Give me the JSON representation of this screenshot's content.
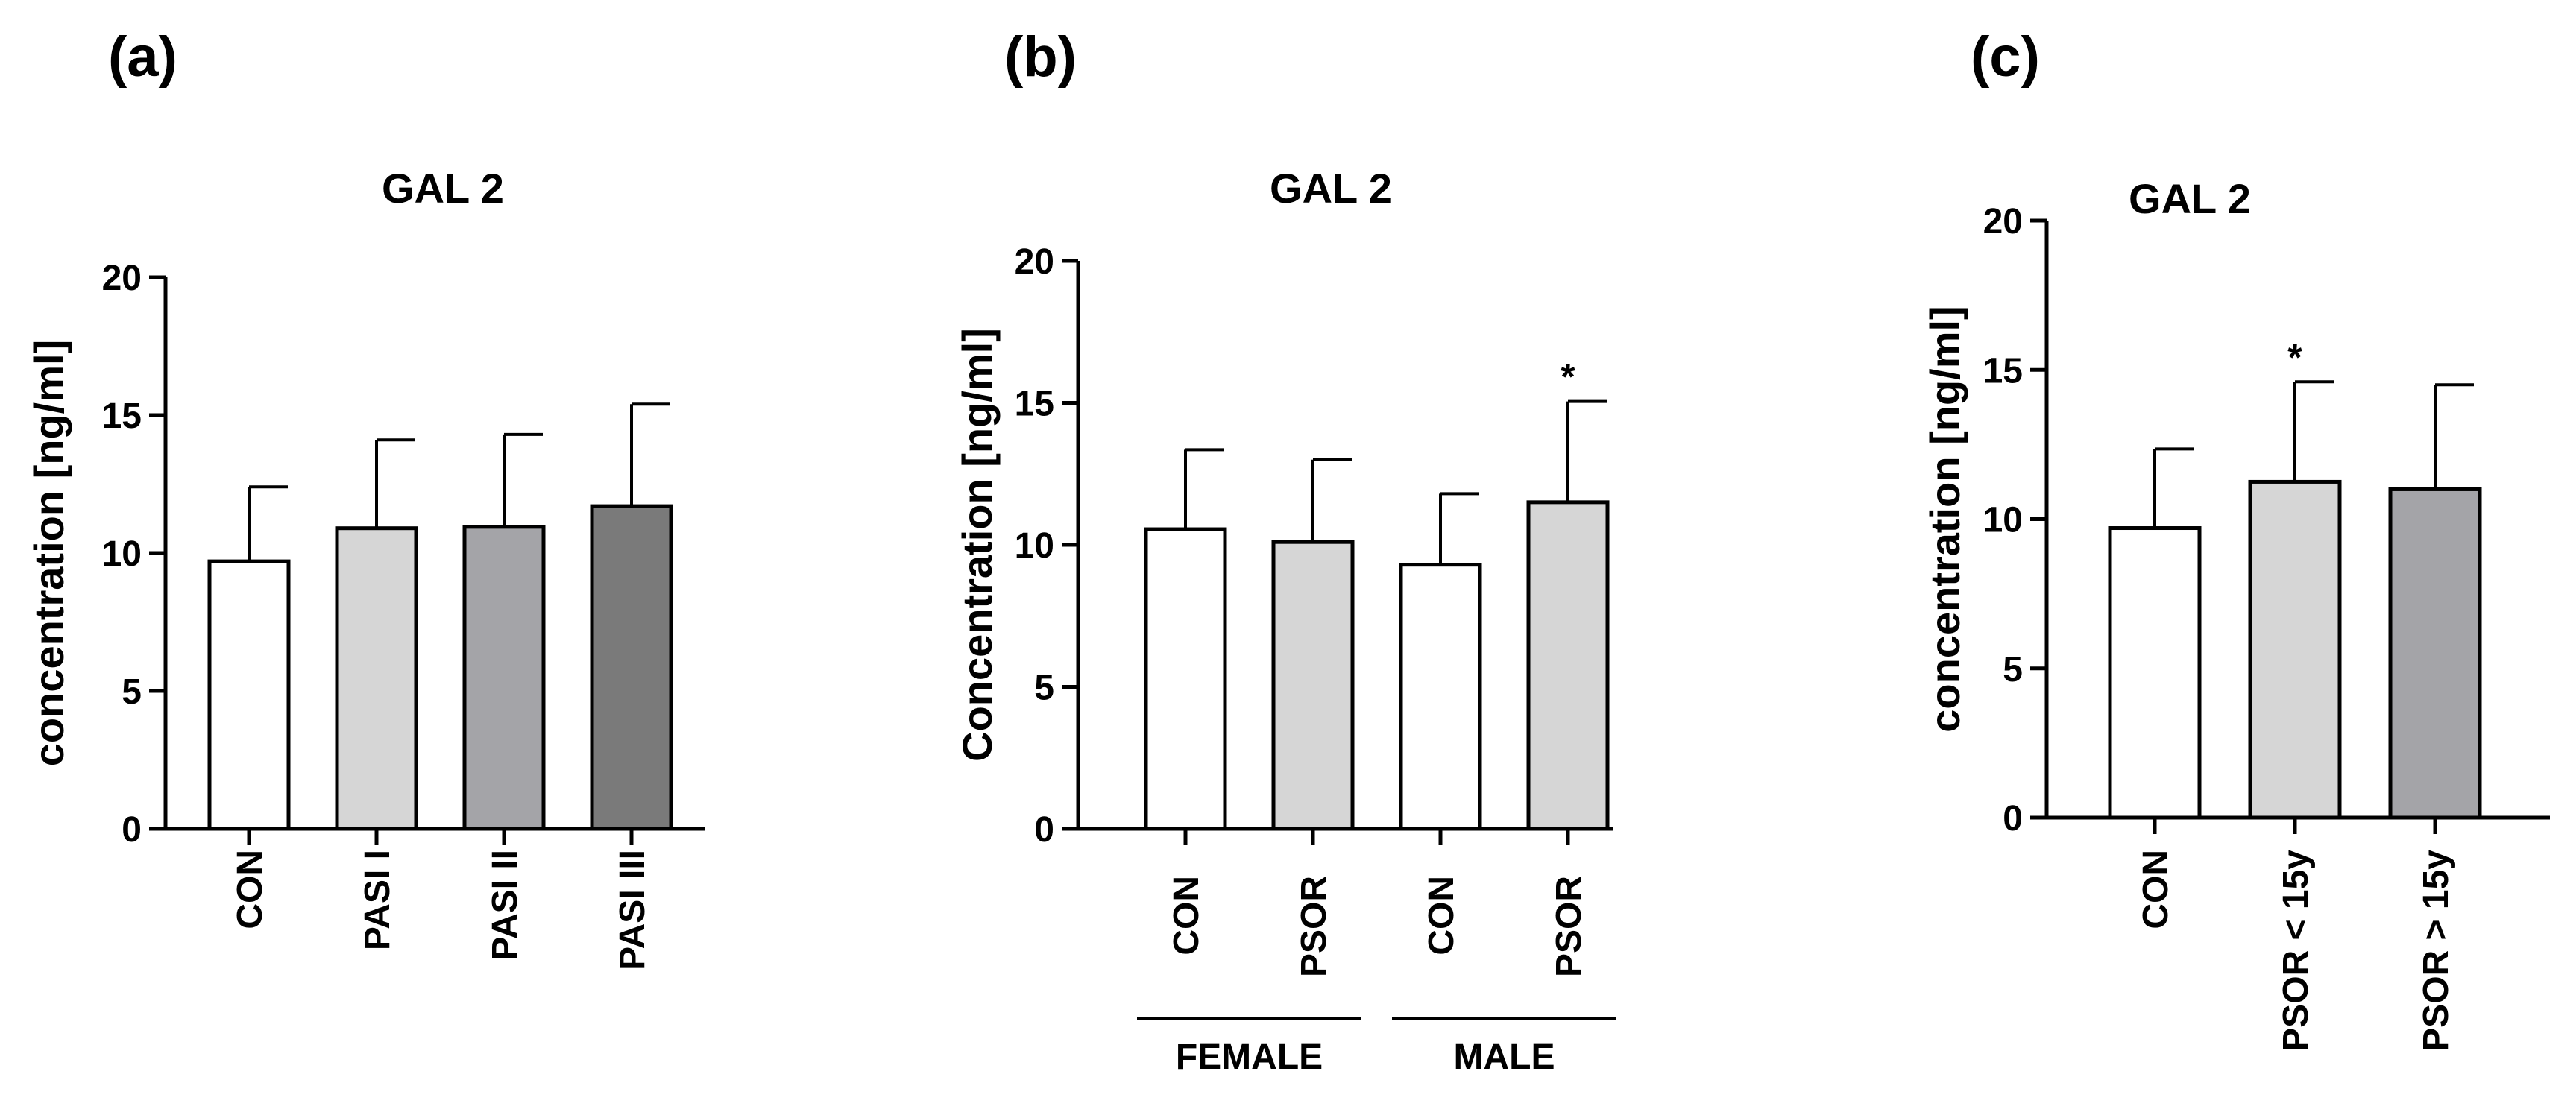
{
  "figure": {
    "panels": [
      {
        "letter": "(a)"
      },
      {
        "letter": "(b)"
      },
      {
        "letter": "(c)"
      }
    ]
  },
  "chart_data": [
    {
      "type": "bar",
      "title": "GAL 2",
      "ylabel": "concentration [ng/ml]",
      "xlabel": "",
      "ylim": [
        0,
        20
      ],
      "yticks": [
        0,
        5,
        10,
        15,
        20
      ],
      "categories": [
        "CON",
        "PASI I",
        "PASI II",
        "PASI III"
      ],
      "values": [
        9.7,
        10.9,
        10.95,
        11.7
      ],
      "errors": [
        2.7,
        3.2,
        3.35,
        3.7
      ],
      "colors": [
        "#ffffff",
        "#d6d6d6",
        "#a4a4a8",
        "#7a7a7a"
      ],
      "significance": [
        "",
        "",
        "",
        ""
      ],
      "groups": []
    },
    {
      "type": "bar",
      "title": "GAL 2",
      "ylabel": "Concentration [ng/ml]",
      "xlabel": "",
      "ylim": [
        0,
        20
      ],
      "yticks": [
        0,
        5,
        10,
        15,
        20
      ],
      "categories": [
        "CON",
        "PSOR",
        "CON",
        "PSOR"
      ],
      "values": [
        10.55,
        10.1,
        9.3,
        11.5
      ],
      "errors": [
        2.8,
        2.9,
        2.5,
        3.55
      ],
      "colors": [
        "#ffffff",
        "#d6d6d6",
        "#ffffff",
        "#d6d6d6"
      ],
      "significance": [
        "",
        "",
        "",
        "*"
      ],
      "groups": [
        {
          "label": "FEMALE",
          "start": 0,
          "end": 1
        },
        {
          "label": "MALE",
          "start": 2,
          "end": 3
        }
      ]
    },
    {
      "type": "bar",
      "title": "GAL 2",
      "ylabel": "concentration [ng/ml]",
      "xlabel": "",
      "ylim": [
        0,
        20
      ],
      "yticks": [
        0,
        5,
        10,
        15,
        20
      ],
      "categories": [
        "CON",
        "PSOR < 15y",
        "PSOR > 15y"
      ],
      "values": [
        9.7,
        11.25,
        11.0
      ],
      "errors": [
        2.65,
        3.35,
        3.5
      ],
      "colors": [
        "#ffffff",
        "#d6d6d6",
        "#a4a4a8"
      ],
      "significance": [
        "",
        "*",
        ""
      ],
      "groups": []
    }
  ]
}
